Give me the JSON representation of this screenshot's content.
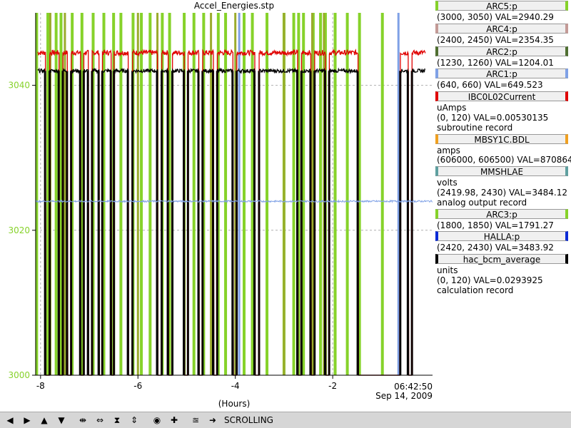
{
  "chart_title": "Accel_Energies.stp",
  "x_unit_label": "(Hours)",
  "timestamp": {
    "time": "06:42:50",
    "date": "Sep 14, 2009"
  },
  "legend": [
    {
      "name": "ARC5:p",
      "color": "#86d22a",
      "lines": [
        "(3000, 3050) VAL=2940.29"
      ]
    },
    {
      "name": "ARC4:p",
      "color": "#c49a96",
      "lines": [
        "(2400, 2450) VAL=2354.35"
      ]
    },
    {
      "name": "ARC2:p",
      "color": "#4f6f31",
      "lines": [
        "(1230, 1260) VAL=1204.01"
      ]
    },
    {
      "name": "ARC1:p",
      "color": "#7fa1e6",
      "lines": [
        "(640, 660) VAL=649.523"
      ]
    },
    {
      "name": "IBC0L02Current",
      "color": "#e00000",
      "lines": [
        "uAmps",
        "(0, 120) VAL=0.00530135",
        "subroutine record"
      ]
    },
    {
      "name": "MBSY1C.BDL",
      "color": "#f0a020",
      "lines": [
        "amps",
        "(606000, 606500)  VAL=870864"
      ]
    },
    {
      "name": "MMSHLAE",
      "color": "#5fa0a0",
      "lines": [
        "volts",
        "(2419.98, 2430)  VAL=3484.12",
        "analog output record"
      ]
    },
    {
      "name": "ARC3:p",
      "color": "#86d22a",
      "lines": [
        "(1800, 1850) VAL=1791.27"
      ]
    },
    {
      "name": "HALLA:p",
      "color": "#0b2bd6",
      "lines": [
        "(2420, 2430) VAL=3483.92"
      ]
    },
    {
      "name": "hac_bcm_average",
      "color": "#000000",
      "lines": [
        "units",
        "(0, 120) VAL=0.0293925",
        "calculation record"
      ]
    }
  ],
  "toolbar": {
    "mode_label": "SCROLLING",
    "icons": [
      "arrow-left-icon",
      "arrow-right-icon",
      "arrow-up-icon",
      "arrow-down-icon",
      "expand-horizontal-icon",
      "compress-horizontal-icon",
      "compress-vertical-icon",
      "expand-vertical-icon",
      "record-icon",
      "plus-icon",
      "config-icon",
      "export-icon"
    ]
  },
  "chart_data": {
    "type": "line",
    "title": "Accel_Energies.stp",
    "xlabel": "(Hours)",
    "ylabel": "",
    "xlim": [
      -8.1,
      0.05
    ],
    "ylim": [
      3000,
      3050
    ],
    "x_ticks": [
      -8,
      -6,
      -4,
      -2
    ],
    "y_ticks": [
      3000,
      3020,
      3040
    ],
    "y_tick_color": "#86d22a",
    "grid": true,
    "beam_off_intervals": [
      [
        -7.9,
        -7.82
      ],
      [
        -7.62,
        -7.55
      ],
      [
        -7.45,
        -7.38
      ],
      [
        -7.18,
        -7.12
      ],
      [
        -7.02,
        -6.95
      ],
      [
        -6.8,
        -6.74
      ],
      [
        -6.55,
        -6.5
      ],
      [
        -6.2,
        -6.12
      ],
      [
        -5.6,
        -5.52
      ],
      [
        -5.38,
        -5.3
      ],
      [
        -5.05,
        -4.98
      ],
      [
        -4.75,
        -4.68
      ],
      [
        -4.45,
        -4.38
      ],
      [
        -4.05,
        -3.98
      ],
      [
        -3.6,
        -3.52
      ],
      [
        -2.72,
        -2.65
      ],
      [
        -2.45,
        -2.38
      ],
      [
        -2.15,
        -2.08
      ],
      [
        -1.48,
        -0.62
      ],
      [
        -0.45,
        -0.38
      ]
    ],
    "series": [
      {
        "name": "ARC5:p",
        "color": "#86d22a",
        "baseline": 3044.5,
        "noise": 0.35
      },
      {
        "name": "ARC1:p",
        "color": "#000000",
        "baseline": 3042.0,
        "noise": 0.25
      },
      {
        "name": "ARC1:p",
        "color": "#7fa1e6",
        "baseline": 3024.0,
        "noise": 0.12
      },
      {
        "name": "IBC0L02Current",
        "color": "#e00000",
        "baseline": 3044.5,
        "noise": 0.35
      },
      {
        "name": "hac_bcm_average",
        "color": "#000000",
        "baseline": 3042.0,
        "noise": 0.25
      }
    ],
    "green_vertical_bars": [
      -8.08,
      -7.85,
      -7.68,
      -7.58,
      -7.35,
      -7.15,
      -6.92,
      -6.7,
      -6.5,
      -6.35,
      -6.1,
      -5.93,
      -5.75,
      -5.5,
      -5.35,
      -5.05,
      -4.85,
      -4.65,
      -4.35,
      -4.2,
      -3.82,
      -3.65,
      -3.35,
      -3.0,
      -2.8,
      -2.7,
      -2.6,
      -2.4,
      -2.25,
      -2.15,
      -1.95,
      -1.7,
      -1.45,
      -0.98
    ],
    "olive_vertical_bars": [
      -7.8,
      -7.5,
      -6.0,
      -5.6,
      -4.5,
      -4.0,
      -3.0,
      -2.42,
      -2.18
    ],
    "blue_vertical_bars": [
      -3.92,
      -0.65
    ]
  }
}
